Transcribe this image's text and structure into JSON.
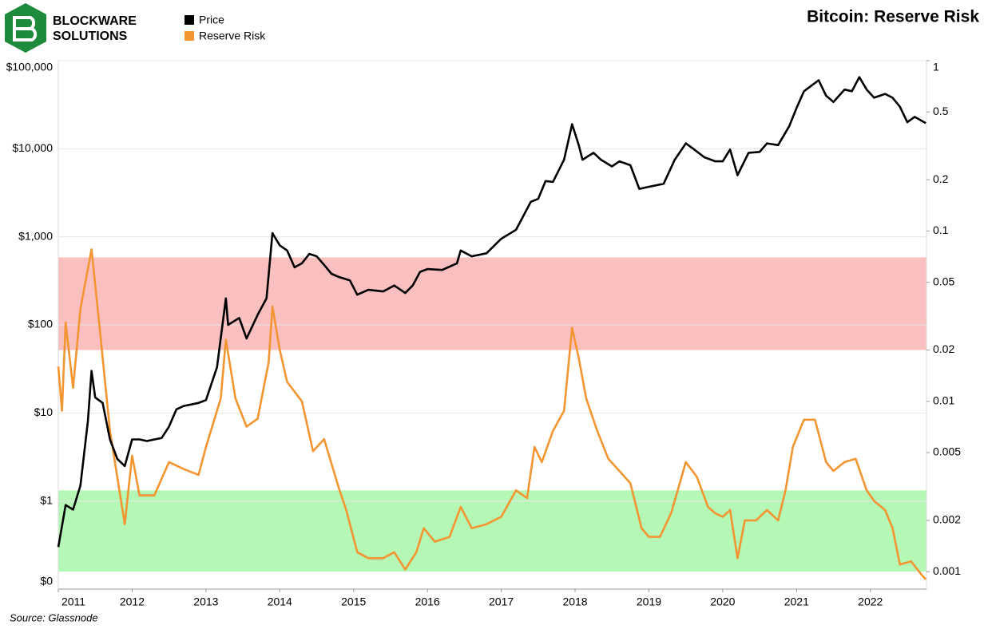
{
  "chart_data": {
    "type": "line",
    "title": "Bitcoin: Reserve Risk",
    "logo": [
      "BLOCKWARE",
      "SOLUTIONS"
    ],
    "source": "Source: Glassnode",
    "xlim": [
      2011.0,
      2022.76
    ],
    "xticks": [
      2011,
      2012,
      2013,
      2014,
      2015,
      2016,
      2017,
      2018,
      2019,
      2020,
      2021,
      2022
    ],
    "ylog": true,
    "ylim": [
      0.1,
      100000
    ],
    "yticks": [
      {
        "value": 0.1,
        "label": "$0"
      },
      {
        "value": 1,
        "label": "$1"
      },
      {
        "value": 10,
        "label": "$10"
      },
      {
        "value": 100,
        "label": "$100"
      },
      {
        "value": 1000,
        "label": "$1,000"
      },
      {
        "value": 10000,
        "label": "$10,000"
      },
      {
        "value": 100000,
        "label": "$100,000"
      }
    ],
    "y2log": true,
    "y2lim": [
      0.00079,
      1
    ],
    "y2ticks": [
      0.001,
      0.002,
      0.005,
      0.01,
      0.02,
      0.05,
      0.1,
      0.2,
      0.5,
      1
    ],
    "grid": true,
    "bands": [
      {
        "axis": "y2",
        "range": [
          0.02,
          0.07
        ],
        "color": "#fac0c0"
      },
      {
        "axis": "y2",
        "range": [
          0.001,
          0.003
        ],
        "color": "#b5f7b5"
      }
    ],
    "series": [
      {
        "name": "Price",
        "color": "#000000",
        "axis": "y",
        "x": [
          2011.0,
          2011.1,
          2011.2,
          2011.3,
          2011.4,
          2011.45,
          2011.5,
          2011.6,
          2011.7,
          2011.8,
          2011.9,
          2012.0,
          2012.1,
          2012.2,
          2012.4,
          2012.5,
          2012.6,
          2012.7,
          2012.9,
          2013.0,
          2013.15,
          2013.27,
          2013.3,
          2013.45,
          2013.55,
          2013.7,
          2013.82,
          2013.9,
          2014.0,
          2014.1,
          2014.2,
          2014.3,
          2014.4,
          2014.5,
          2014.6,
          2014.7,
          2014.8,
          2014.95,
          2015.05,
          2015.2,
          2015.4,
          2015.55,
          2015.7,
          2015.8,
          2015.9,
          2016.0,
          2016.2,
          2016.4,
          2016.45,
          2016.6,
          2016.8,
          2017.0,
          2017.2,
          2017.4,
          2017.5,
          2017.6,
          2017.7,
          2017.85,
          2017.96,
          2018.05,
          2018.1,
          2018.25,
          2018.35,
          2018.5,
          2018.6,
          2018.75,
          2018.87,
          2019.0,
          2019.2,
          2019.35,
          2019.5,
          2019.6,
          2019.75,
          2019.9,
          2020.0,
          2020.1,
          2020.2,
          2020.35,
          2020.5,
          2020.6,
          2020.75,
          2020.9,
          2021.0,
          2021.1,
          2021.3,
          2021.4,
          2021.5,
          2021.65,
          2021.75,
          2021.85,
          2021.95,
          2022.05,
          2022.2,
          2022.3,
          2022.4,
          2022.5,
          2022.6,
          2022.75
        ],
        "values": [
          0.3,
          0.9,
          0.8,
          1.5,
          8,
          30,
          15,
          13,
          5,
          3,
          2.5,
          5,
          5,
          4.8,
          5.2,
          7,
          11,
          12,
          13,
          14,
          33,
          200,
          100,
          120,
          70,
          130,
          200,
          1100,
          800,
          700,
          450,
          500,
          640,
          600,
          480,
          380,
          350,
          320,
          220,
          250,
          240,
          280,
          230,
          280,
          400,
          430,
          420,
          500,
          700,
          600,
          650,
          950,
          1200,
          2500,
          2700,
          4300,
          4200,
          7500,
          19000,
          11000,
          7500,
          9000,
          7500,
          6300,
          7200,
          6500,
          3500,
          3700,
          4000,
          7500,
          11500,
          10000,
          8000,
          7200,
          7200,
          9800,
          5000,
          9000,
          9200,
          11500,
          11000,
          18000,
          29000,
          45000,
          60000,
          40000,
          34000,
          47000,
          45000,
          65000,
          47000,
          38000,
          42000,
          38000,
          30000,
          20000,
          23000,
          19500
        ]
      },
      {
        "name": "Reserve Risk",
        "color": "#f39530",
        "axis": "y2",
        "x": [
          2011.0,
          2011.05,
          2011.1,
          2011.2,
          2011.3,
          2011.45,
          2011.55,
          2011.7,
          2011.9,
          2012.0,
          2012.1,
          2012.3,
          2012.5,
          2012.7,
          2012.9,
          2013.0,
          2013.2,
          2013.27,
          2013.4,
          2013.55,
          2013.7,
          2013.85,
          2013.9,
          2014.0,
          2014.1,
          2014.3,
          2014.45,
          2014.6,
          2014.8,
          2014.9,
          2015.05,
          2015.2,
          2015.4,
          2015.55,
          2015.7,
          2015.85,
          2015.95,
          2016.1,
          2016.3,
          2016.45,
          2016.6,
          2016.8,
          2017.0,
          2017.2,
          2017.35,
          2017.45,
          2017.55,
          2017.7,
          2017.85,
          2017.96,
          2018.05,
          2018.15,
          2018.3,
          2018.45,
          2018.6,
          2018.75,
          2018.9,
          2019.0,
          2019.15,
          2019.3,
          2019.5,
          2019.65,
          2019.8,
          2019.9,
          2020.0,
          2020.1,
          2020.2,
          2020.3,
          2020.45,
          2020.6,
          2020.75,
          2020.85,
          2020.95,
          2021.1,
          2021.25,
          2021.4,
          2021.5,
          2021.65,
          2021.8,
          2021.95,
          2022.05,
          2022.2,
          2022.3,
          2022.4,
          2022.55,
          2022.7,
          2022.75
        ],
        "values": [
          0.016,
          0.0088,
          0.029,
          0.012,
          0.035,
          0.078,
          0.03,
          0.0067,
          0.0019,
          0.0048,
          0.0028,
          0.0028,
          0.0044,
          0.004,
          0.0037,
          0.0054,
          0.0104,
          0.023,
          0.0104,
          0.0071,
          0.0079,
          0.017,
          0.036,
          0.02,
          0.013,
          0.01,
          0.0051,
          0.006,
          0.0031,
          0.0023,
          0.0013,
          0.0012,
          0.0012,
          0.0013,
          0.00103,
          0.0013,
          0.0018,
          0.0015,
          0.0016,
          0.0024,
          0.0018,
          0.0019,
          0.0021,
          0.003,
          0.0027,
          0.0054,
          0.0044,
          0.0067,
          0.0088,
          0.027,
          0.018,
          0.0104,
          0.0067,
          0.0046,
          0.0039,
          0.0033,
          0.0018,
          0.0016,
          0.0016,
          0.0022,
          0.0044,
          0.0036,
          0.0024,
          0.0022,
          0.0021,
          0.0023,
          0.0012,
          0.002,
          0.002,
          0.0023,
          0.002,
          0.003,
          0.0054,
          0.0078,
          0.0078,
          0.0044,
          0.0039,
          0.0044,
          0.0046,
          0.003,
          0.0026,
          0.0023,
          0.0018,
          0.0011,
          0.00115,
          0.00095,
          0.0009
        ]
      }
    ]
  }
}
